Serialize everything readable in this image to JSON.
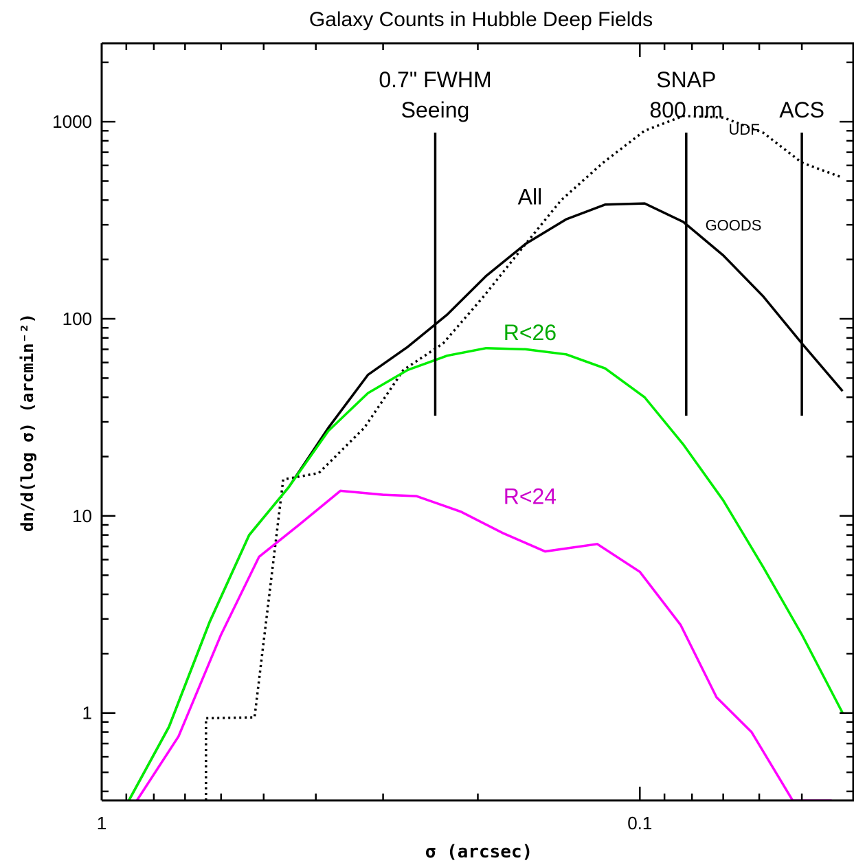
{
  "chart_data": {
    "type": "line",
    "title": "Galaxy Counts in Hubble Deep Fields",
    "xlabel": "σ (arcsec)",
    "ylabel": "dn/d(log σ) (arcmin⁻²)",
    "x_scale": "log-reversed",
    "y_scale": "log",
    "xlim": [
      1.0,
      0.04
    ],
    "ylim": [
      0.36,
      2500
    ],
    "x_tick_labels": [
      {
        "value": 1,
        "label": "1"
      },
      {
        "value": 0.1,
        "label": "0.1"
      }
    ],
    "y_tick_labels": [
      {
        "value": 1,
        "label": "1"
      },
      {
        "value": 10,
        "label": "10"
      },
      {
        "value": 100,
        "label": "100"
      },
      {
        "value": 1000,
        "label": "1000"
      }
    ],
    "grid": false,
    "series": [
      {
        "name": "UDF",
        "color": "#000000",
        "dash": "dotted",
        "x": [
          0.64,
          0.64,
          0.52,
          0.46,
          0.395,
          0.325,
          0.275,
          0.232,
          0.195,
          0.165,
          0.14,
          0.117,
          0.098,
          0.083,
          0.07,
          0.059,
          0.05,
          0.042
        ],
        "y": [
          0.36,
          0.94,
          0.95,
          15.3,
          16.5,
          28,
          55,
          75,
          130,
          230,
          400,
          620,
          900,
          1070,
          1050,
          880,
          620,
          520
        ]
      },
      {
        "name": "All",
        "color": "#000000",
        "dash": "solid",
        "x": [
          0.89,
          0.75,
          0.63,
          0.532,
          0.449,
          0.379,
          0.32,
          0.27,
          0.228,
          0.193,
          0.163,
          0.137,
          0.116,
          0.098,
          0.083,
          0.07,
          0.059,
          0.05,
          0.042
        ],
        "y": [
          0.36,
          0.85,
          2.9,
          8.0,
          14,
          28,
          52,
          72,
          105,
          165,
          240,
          320,
          380,
          385,
          310,
          210,
          130,
          75,
          43
        ]
      },
      {
        "name": "R<26",
        "color": "#00ee00",
        "dash": "solid",
        "x": [
          0.89,
          0.75,
          0.63,
          0.532,
          0.449,
          0.379,
          0.32,
          0.27,
          0.228,
          0.193,
          0.163,
          0.137,
          0.116,
          0.098,
          0.083,
          0.07,
          0.059,
          0.05,
          0.042
        ],
        "y": [
          0.36,
          0.85,
          2.9,
          8.0,
          14,
          27,
          42,
          55,
          65,
          71,
          70,
          66,
          56,
          40,
          23,
          12,
          5.5,
          2.5,
          1.0
        ]
      },
      {
        "name": "R<24",
        "color": "#ff00ff",
        "dash": "solid",
        "x": [
          0.86,
          0.72,
          0.6,
          0.51,
          0.43,
          0.36,
          0.3,
          0.26,
          0.215,
          0.18,
          0.15,
          0.12,
          0.1,
          0.084,
          0.072,
          0.062,
          0.052,
          0.044
        ],
        "y": [
          0.36,
          0.76,
          2.5,
          6.2,
          9.0,
          13.4,
          12.8,
          12.6,
          10.5,
          8.2,
          6.6,
          7.2,
          5.2,
          2.8,
          1.2,
          0.8,
          0.36,
          0.36
        ]
      }
    ],
    "reference_lines": [
      {
        "x": 0.24,
        "label_lines": [
          "0.7\" FWHM",
          "Seeing"
        ]
      },
      {
        "x": 0.082,
        "label_lines": [
          "SNAP",
          "800 nm"
        ]
      },
      {
        "x": 0.05,
        "label_lines": [
          "ACS"
        ]
      }
    ],
    "annotations": [
      {
        "text": "UDF",
        "x": 0.064,
        "y": 860,
        "size": "small",
        "color": "#000000"
      },
      {
        "text": "All",
        "x": 0.16,
        "y": 380,
        "size": "large",
        "color": "#000000"
      },
      {
        "text": "GOODS",
        "x": 0.067,
        "y": 280,
        "size": "small",
        "color": "#000000"
      },
      {
        "text": "R<26",
        "x": 0.16,
        "y": 78,
        "size": "large",
        "color": "#00aa00"
      },
      {
        "text": "R<24",
        "x": 0.16,
        "y": 11.5,
        "size": "large",
        "color": "#cc00cc"
      }
    ]
  }
}
